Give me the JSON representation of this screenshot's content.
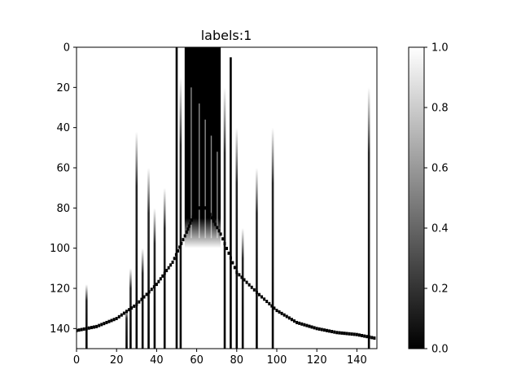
{
  "chart_data": {
    "type": "heatmap",
    "title": "labels:1",
    "colormap": "gray",
    "x_ticks": [
      "0",
      "20",
      "40",
      "60",
      "80",
      "100",
      "120",
      "140"
    ],
    "x_tick_values": [
      0,
      20,
      40,
      60,
      80,
      100,
      120,
      140
    ],
    "y_ticks": [
      "0",
      "20",
      "40",
      "60",
      "80",
      "100",
      "120",
      "140"
    ],
    "y_tick_values": [
      0,
      20,
      40,
      60,
      80,
      100,
      120,
      140
    ],
    "xlim": [
      0,
      150
    ],
    "ylim": [
      150,
      0
    ],
    "colorbar": {
      "range": [
        0.0,
        1.0
      ],
      "ticks": [
        "0.0",
        "0.2",
        "0.4",
        "0.6",
        "0.8",
        "1.0"
      ],
      "tick_values": [
        0.0,
        0.2,
        0.4,
        0.6,
        0.8,
        1.0
      ]
    },
    "background_value": 1.0,
    "curve": {
      "description_values": "dark curve rows (y) sampled at columns (x)",
      "x": [
        0,
        10,
        20,
        30,
        40,
        48,
        55,
        60,
        65,
        72,
        80,
        90,
        100,
        110,
        120,
        130,
        140,
        150
      ],
      "y": [
        141,
        139,
        135,
        128,
        118,
        107,
        92,
        80,
        80,
        93,
        112,
        122,
        131,
        137,
        140,
        142,
        143,
        145
      ]
    },
    "dark_core": {
      "x_range": [
        54,
        72
      ],
      "y_range": [
        0,
        100
      ],
      "value": 0.0
    },
    "vertical_streaks": [
      {
        "x": 5,
        "y_start": 118,
        "value": 0.0
      },
      {
        "x": 25,
        "y_start": 130,
        "value": 0.0
      },
      {
        "x": 27,
        "y_start": 110,
        "value": 0.1
      },
      {
        "x": 30,
        "y_start": 42,
        "value": 0.2
      },
      {
        "x": 33,
        "y_start": 100,
        "value": 0.1
      },
      {
        "x": 36,
        "y_start": 60,
        "value": 0.1
      },
      {
        "x": 39,
        "y_start": 80,
        "value": 0.1
      },
      {
        "x": 44,
        "y_start": 70,
        "value": 0.1
      },
      {
        "x": 50,
        "y_start": 0,
        "value": 0.0
      },
      {
        "x": 52,
        "y_start": 15,
        "value": 0.1
      },
      {
        "x": 74,
        "y_start": 20,
        "value": 0.0
      },
      {
        "x": 77,
        "y_start": 5,
        "value": 0.0
      },
      {
        "x": 80,
        "y_start": 40,
        "value": 0.1
      },
      {
        "x": 83,
        "y_start": 90,
        "value": 0.1
      },
      {
        "x": 90,
        "y_start": 60,
        "value": 0.0
      },
      {
        "x": 98,
        "y_start": 40,
        "value": 0.1
      },
      {
        "x": 146,
        "y_start": 20,
        "value": 0.0
      }
    ]
  }
}
